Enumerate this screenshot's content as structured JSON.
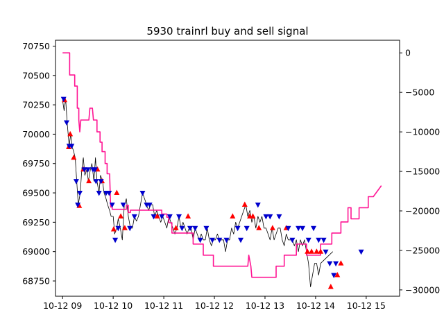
{
  "chart_data": {
    "type": "line",
    "title": "5930 trainrl buy and sell signal",
    "xlabel": "",
    "ylabel": "",
    "x_ticks": [
      "10-12 09",
      "10-12 10",
      "10-12 11",
      "10-12 12",
      "10-12 13",
      "10-12 14",
      "10-12 15"
    ],
    "y_left_ticks": [
      68750,
      69000,
      69250,
      69500,
      69750,
      70000,
      70250,
      70500,
      70750
    ],
    "y_left_lim": [
      68620,
      70800
    ],
    "y_right_ticks": [
      0,
      -5000,
      -10000,
      -15000,
      -20000,
      -25000,
      -30000
    ],
    "y_right_lim": [
      -30800,
      1600
    ],
    "x_unit": "hours after 09:00",
    "x_lim": [
      -0.14,
      6.66
    ],
    "grid": false,
    "colors": {
      "price": "#000000",
      "profit": "#ff1493",
      "buy_marker": "#ff0000",
      "sell_marker": "#0000cd"
    },
    "series": [
      {
        "key": "price",
        "axis": "left",
        "points": [
          [
            0.0,
            70290
          ],
          [
            0.03,
            70200
          ],
          [
            0.06,
            70300
          ],
          [
            0.09,
            70100
          ],
          [
            0.13,
            69900
          ],
          [
            0.16,
            70000
          ],
          [
            0.19,
            69890
          ],
          [
            0.22,
            69850
          ],
          [
            0.25,
            69800
          ],
          [
            0.28,
            69600
          ],
          [
            0.31,
            69400
          ],
          [
            0.35,
            69500
          ],
          [
            0.38,
            69700
          ],
          [
            0.41,
            69800
          ],
          [
            0.44,
            69650
          ],
          [
            0.48,
            69700
          ],
          [
            0.51,
            69600
          ],
          [
            0.55,
            69700
          ],
          [
            0.58,
            69750
          ],
          [
            0.62,
            69600
          ],
          [
            0.65,
            69800
          ],
          [
            0.68,
            69600
          ],
          [
            0.72,
            69500
          ],
          [
            0.75,
            69650
          ],
          [
            0.79,
            69600
          ],
          [
            0.82,
            69500
          ],
          [
            0.86,
            69450
          ],
          [
            0.89,
            69400
          ],
          [
            0.93,
            69350
          ],
          [
            0.96,
            69300
          ],
          [
            1.0,
            69300
          ],
          [
            1.03,
            69150
          ],
          [
            1.07,
            69200
          ],
          [
            1.1,
            69280
          ],
          [
            1.14,
            69200
          ],
          [
            1.18,
            69100
          ],
          [
            1.22,
            69400
          ],
          [
            1.26,
            69450
          ],
          [
            1.3,
            69300
          ],
          [
            1.34,
            69200
          ],
          [
            1.38,
            69200
          ],
          [
            1.42,
            69300
          ],
          [
            1.46,
            69260
          ],
          [
            1.5,
            69300
          ],
          [
            1.54,
            69400
          ],
          [
            1.58,
            69500
          ],
          [
            1.62,
            69450
          ],
          [
            1.66,
            69400
          ],
          [
            1.7,
            69350
          ],
          [
            1.74,
            69400
          ],
          [
            1.78,
            69400
          ],
          [
            1.82,
            69300
          ],
          [
            1.86,
            69350
          ],
          [
            1.9,
            69300
          ],
          [
            1.94,
            69250
          ],
          [
            1.98,
            69300
          ],
          [
            2.02,
            69250
          ],
          [
            2.06,
            69200
          ],
          [
            2.1,
            69300
          ],
          [
            2.14,
            69250
          ],
          [
            2.18,
            69200
          ],
          [
            2.22,
            69150
          ],
          [
            2.26,
            69200
          ],
          [
            2.3,
            69300
          ],
          [
            2.34,
            69200
          ],
          [
            2.38,
            69250
          ],
          [
            2.42,
            69200
          ],
          [
            2.46,
            69150
          ],
          [
            2.5,
            69200
          ],
          [
            2.54,
            69200
          ],
          [
            2.58,
            69100
          ],
          [
            2.62,
            69200
          ],
          [
            2.66,
            69150
          ],
          [
            2.7,
            69100
          ],
          [
            2.74,
            69150
          ],
          [
            2.78,
            69100
          ],
          [
            2.82,
            69100
          ],
          [
            2.86,
            69200
          ],
          [
            2.9,
            69100
          ],
          [
            2.94,
            69050
          ],
          [
            2.98,
            69100
          ],
          [
            3.02,
            69100
          ],
          [
            3.06,
            69150
          ],
          [
            3.1,
            69100
          ],
          [
            3.14,
            69100
          ],
          [
            3.18,
            69100
          ],
          [
            3.22,
            69000
          ],
          [
            3.26,
            69100
          ],
          [
            3.3,
            69100
          ],
          [
            3.34,
            69200
          ],
          [
            3.38,
            69150
          ],
          [
            3.42,
            69250
          ],
          [
            3.46,
            69200
          ],
          [
            3.5,
            69250
          ],
          [
            3.54,
            69300
          ],
          [
            3.58,
            69350
          ],
          [
            3.62,
            69400
          ],
          [
            3.66,
            69300
          ],
          [
            3.7,
            69350
          ],
          [
            3.74,
            69250
          ],
          [
            3.78,
            69300
          ],
          [
            3.82,
            69200
          ],
          [
            3.86,
            69300
          ],
          [
            3.9,
            69250
          ],
          [
            3.94,
            69300
          ],
          [
            3.98,
            69200
          ],
          [
            4.02,
            69200
          ],
          [
            4.06,
            69150
          ],
          [
            4.1,
            69100
          ],
          [
            4.14,
            69200
          ],
          [
            4.18,
            69100
          ],
          [
            4.22,
            69150
          ],
          [
            4.26,
            69200
          ],
          [
            4.3,
            69200
          ],
          [
            4.34,
            69100
          ],
          [
            4.38,
            69050
          ],
          [
            4.42,
            69150
          ],
          [
            4.46,
            69100
          ],
          [
            4.5,
            69100
          ],
          [
            4.54,
            69100
          ],
          [
            4.58,
            69050
          ],
          [
            4.62,
            69100
          ],
          [
            4.66,
            69000
          ],
          [
            4.7,
            69100
          ],
          [
            4.74,
            69050
          ],
          [
            4.78,
            69100
          ],
          [
            4.82,
            69000
          ],
          [
            4.86,
            68900
          ],
          [
            4.9,
            68700
          ],
          [
            4.94,
            68800
          ],
          [
            4.98,
            68900
          ],
          [
            5.02,
            68900
          ],
          [
            5.06,
            68800
          ],
          [
            5.1,
            68900
          ],
          [
            5.34,
            69000
          ]
        ]
      },
      {
        "key": "profit",
        "axis": "right",
        "points": [
          [
            0.0,
            0
          ],
          [
            0.14,
            0
          ],
          [
            0.14,
            -2800
          ],
          [
            0.24,
            -2800
          ],
          [
            0.24,
            -4200
          ],
          [
            0.29,
            -4200
          ],
          [
            0.29,
            -7000
          ],
          [
            0.32,
            -7000
          ],
          [
            0.32,
            -8500
          ],
          [
            0.34,
            -10000
          ],
          [
            0.36,
            -8500
          ],
          [
            0.52,
            -8500
          ],
          [
            0.54,
            -7000
          ],
          [
            0.59,
            -7000
          ],
          [
            0.61,
            -8500
          ],
          [
            0.68,
            -8500
          ],
          [
            0.68,
            -10000
          ],
          [
            0.74,
            -10000
          ],
          [
            0.74,
            -11300
          ],
          [
            0.78,
            -11300
          ],
          [
            0.78,
            -12500
          ],
          [
            0.84,
            -12500
          ],
          [
            0.84,
            -14000
          ],
          [
            0.88,
            -14000
          ],
          [
            0.88,
            -15300
          ],
          [
            0.93,
            -15300
          ],
          [
            0.95,
            -19500
          ],
          [
            0.98,
            -19500
          ],
          [
            0.98,
            -19800
          ],
          [
            1.26,
            -19800
          ],
          [
            1.26,
            -19300
          ],
          [
            1.3,
            -19300
          ],
          [
            1.3,
            -20200
          ],
          [
            1.34,
            -20200
          ],
          [
            1.34,
            -19900
          ],
          [
            1.96,
            -19900
          ],
          [
            1.96,
            -20400
          ],
          [
            2.06,
            -20400
          ],
          [
            2.06,
            -20800
          ],
          [
            2.1,
            -20800
          ],
          [
            2.1,
            -21500
          ],
          [
            2.16,
            -21500
          ],
          [
            2.16,
            -22800
          ],
          [
            2.58,
            -22800
          ],
          [
            2.58,
            -24200
          ],
          [
            2.78,
            -24200
          ],
          [
            2.78,
            -25600
          ],
          [
            2.98,
            -25600
          ],
          [
            2.98,
            -27000
          ],
          [
            3.66,
            -27000
          ],
          [
            3.68,
            -25600
          ],
          [
            3.72,
            -27000
          ],
          [
            3.74,
            -28400
          ],
          [
            4.22,
            -28400
          ],
          [
            4.22,
            -27000
          ],
          [
            4.38,
            -27000
          ],
          [
            4.38,
            -25600
          ],
          [
            4.62,
            -25600
          ],
          [
            4.62,
            -24200
          ],
          [
            4.82,
            -24200
          ],
          [
            4.82,
            -25600
          ],
          [
            5.1,
            -25600
          ],
          [
            5.1,
            -24200
          ],
          [
            5.32,
            -24200
          ],
          [
            5.32,
            -22800
          ],
          [
            5.5,
            -22800
          ],
          [
            5.5,
            -21400
          ],
          [
            5.64,
            -21400
          ],
          [
            5.64,
            -19600
          ],
          [
            5.7,
            -19600
          ],
          [
            5.7,
            -21000
          ],
          [
            5.86,
            -21000
          ],
          [
            5.86,
            -19600
          ],
          [
            6.04,
            -19600
          ],
          [
            6.04,
            -18200
          ],
          [
            6.14,
            -18200
          ],
          [
            6.3,
            -16800
          ]
        ]
      }
    ],
    "markers": [
      {
        "key": "buy",
        "axis": "left",
        "points": [
          [
            0.04,
            70290
          ],
          [
            0.12,
            69890
          ],
          [
            0.15,
            70000
          ],
          [
            0.22,
            69800
          ],
          [
            0.33,
            69390
          ],
          [
            0.41,
            69700
          ],
          [
            0.52,
            69600
          ],
          [
            0.69,
            69700
          ],
          [
            0.78,
            69600
          ],
          [
            1.01,
            69190
          ],
          [
            1.07,
            69500
          ],
          [
            1.15,
            69300
          ],
          [
            1.23,
            69200
          ],
          [
            1.87,
            69300
          ],
          [
            2.24,
            69200
          ],
          [
            2.48,
            69300
          ],
          [
            3.36,
            69300
          ],
          [
            3.6,
            69400
          ],
          [
            3.7,
            69300
          ],
          [
            3.76,
            69300
          ],
          [
            3.88,
            69200
          ],
          [
            4.15,
            69200
          ],
          [
            4.42,
            69200
          ],
          [
            4.84,
            69000
          ],
          [
            4.92,
            69000
          ],
          [
            5.02,
            69000
          ],
          [
            5.1,
            69000
          ],
          [
            5.3,
            68700
          ],
          [
            5.43,
            68800
          ],
          [
            5.5,
            68900
          ]
        ]
      },
      {
        "key": "sell",
        "axis": "left",
        "points": [
          [
            0.02,
            70300
          ],
          [
            0.08,
            70100
          ],
          [
            0.13,
            69900
          ],
          [
            0.18,
            69900
          ],
          [
            0.27,
            69600
          ],
          [
            0.3,
            69400
          ],
          [
            0.34,
            69500
          ],
          [
            0.43,
            69700
          ],
          [
            0.5,
            69700
          ],
          [
            0.6,
            69700
          ],
          [
            0.64,
            69700
          ],
          [
            0.66,
            69600
          ],
          [
            0.72,
            69500
          ],
          [
            0.76,
            69600
          ],
          [
            0.86,
            69500
          ],
          [
            0.92,
            69500
          ],
          [
            0.98,
            69400
          ],
          [
            1.04,
            69100
          ],
          [
            1.1,
            69200
          ],
          [
            1.2,
            69400
          ],
          [
            1.33,
            69200
          ],
          [
            1.42,
            69300
          ],
          [
            1.58,
            69500
          ],
          [
            1.66,
            69400
          ],
          [
            1.72,
            69400
          ],
          [
            1.8,
            69300
          ],
          [
            1.96,
            69300
          ],
          [
            2.12,
            69300
          ],
          [
            2.3,
            69300
          ],
          [
            2.36,
            69200
          ],
          [
            2.52,
            69200
          ],
          [
            2.62,
            69200
          ],
          [
            2.72,
            69100
          ],
          [
            2.84,
            69200
          ],
          [
            2.96,
            69100
          ],
          [
            3.1,
            69100
          ],
          [
            3.24,
            69100
          ],
          [
            3.46,
            69200
          ],
          [
            3.52,
            69100
          ],
          [
            3.64,
            69200
          ],
          [
            3.86,
            69400
          ],
          [
            4.02,
            69300
          ],
          [
            4.1,
            69300
          ],
          [
            4.28,
            69300
          ],
          [
            4.46,
            69200
          ],
          [
            4.54,
            69100
          ],
          [
            4.66,
            69200
          ],
          [
            4.74,
            69200
          ],
          [
            4.86,
            69100
          ],
          [
            4.96,
            69200
          ],
          [
            5.06,
            69100
          ],
          [
            5.16,
            69100
          ],
          [
            5.2,
            69000
          ],
          [
            5.28,
            68900
          ],
          [
            5.36,
            68800
          ],
          [
            5.4,
            68900
          ],
          [
            5.9,
            69000
          ]
        ]
      }
    ]
  }
}
